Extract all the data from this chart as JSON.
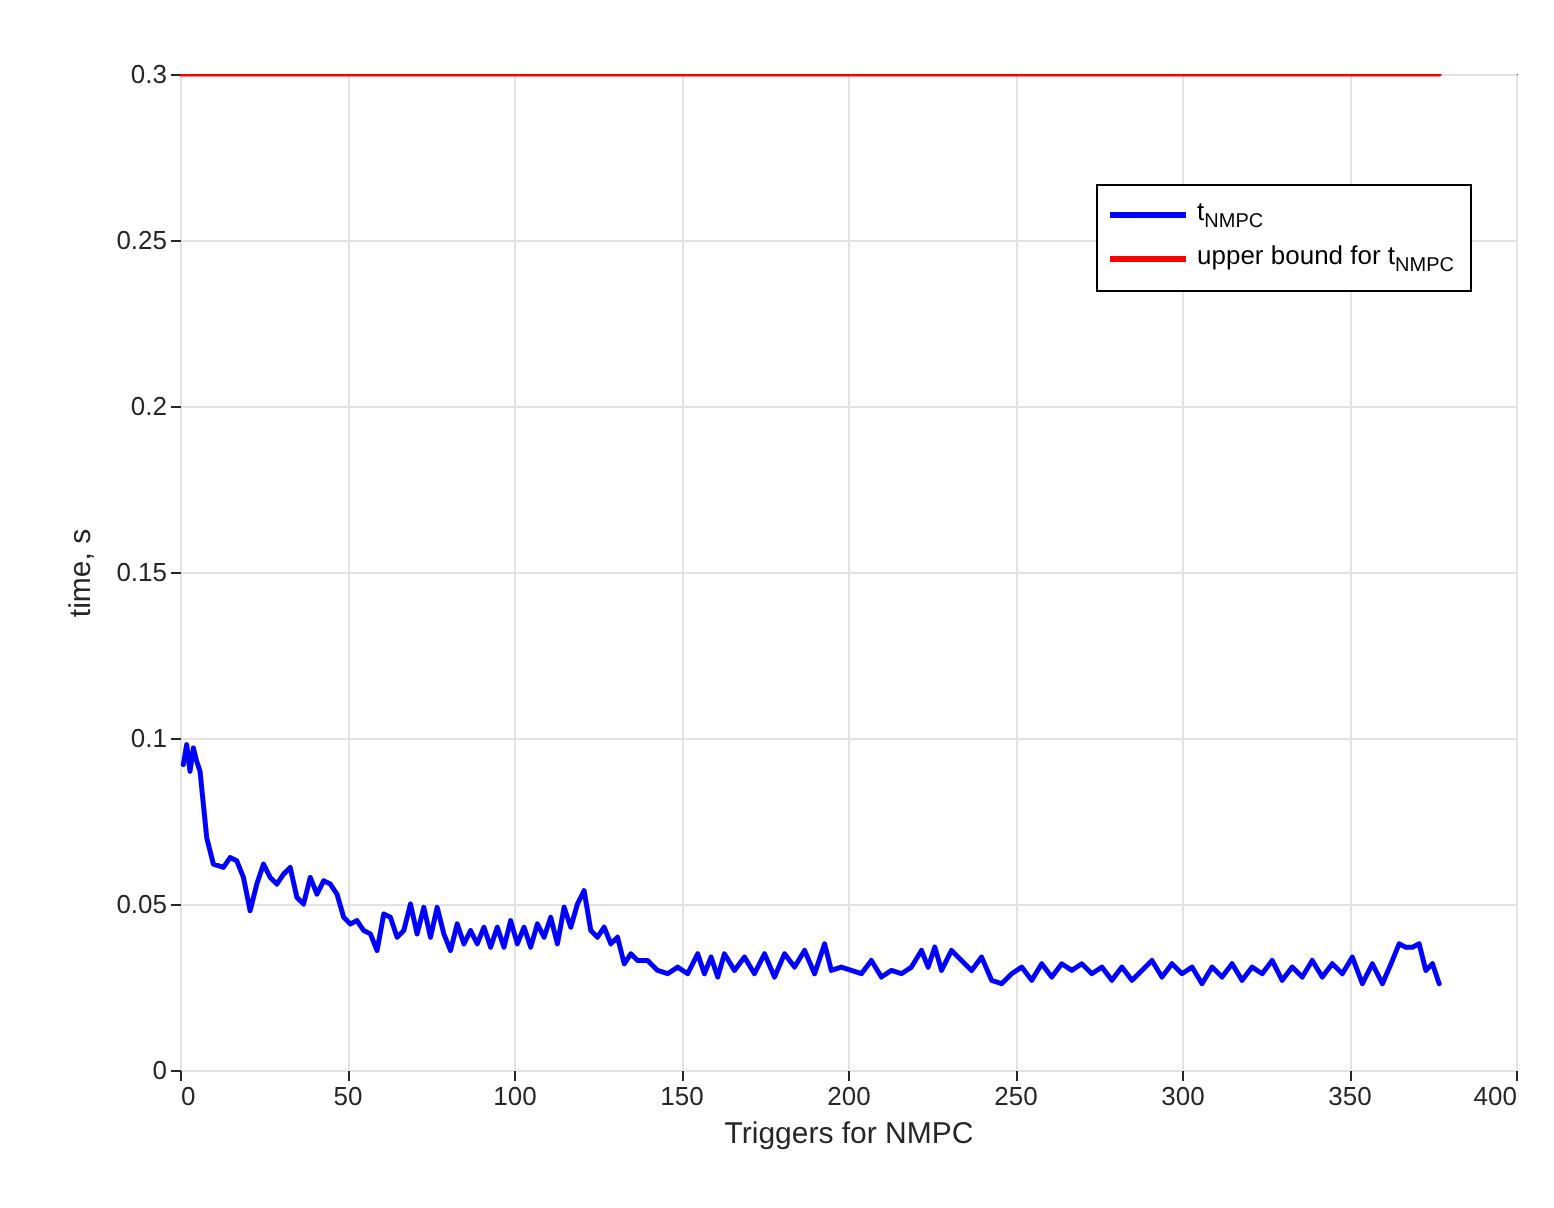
{
  "chart_data": {
    "type": "line",
    "xlabel": "Triggers for NMPC",
    "ylabel": "time, s",
    "xlim": [
      0,
      400
    ],
    "xticks": [
      0,
      50,
      100,
      150,
      200,
      250,
      300,
      350,
      400
    ],
    "ylim": [
      0,
      0.3
    ],
    "yticks": [
      0,
      0.05,
      0.1,
      0.15,
      0.2,
      0.25,
      0.3
    ],
    "grid": true,
    "legend": "top right",
    "series": [
      {
        "name": "t$_{NMPC}$",
        "color": "#0000ff",
        "x": [
          1,
          2,
          3,
          4,
          5,
          6,
          8,
          10,
          13,
          15,
          17,
          19,
          21,
          23,
          25,
          27,
          29,
          31,
          33,
          35,
          37,
          39,
          41,
          43,
          45,
          47,
          49,
          51,
          53,
          55,
          57,
          59,
          61,
          63,
          65,
          67,
          69,
          71,
          73,
          75,
          77,
          79,
          81,
          83,
          85,
          87,
          89,
          91,
          93,
          95,
          97,
          99,
          101,
          103,
          105,
          107,
          109,
          111,
          113,
          115,
          117,
          119,
          121,
          123,
          125,
          127,
          129,
          131,
          133,
          135,
          137,
          140,
          143,
          146,
          149,
          152,
          155,
          157,
          159,
          161,
          163,
          166,
          169,
          172,
          175,
          178,
          181,
          184,
          187,
          190,
          193,
          195,
          198,
          201,
          204,
          207,
          210,
          213,
          216,
          219,
          222,
          224,
          226,
          228,
          231,
          234,
          237,
          240,
          243,
          246,
          249,
          252,
          255,
          258,
          261,
          264,
          267,
          270,
          273,
          276,
          279,
          282,
          285,
          288,
          291,
          294,
          297,
          300,
          303,
          306,
          309,
          312,
          315,
          318,
          321,
          324,
          327,
          330,
          333,
          336,
          339,
          342,
          345,
          348,
          351,
          354,
          357,
          360,
          363,
          365,
          367,
          369,
          371,
          373,
          375,
          377
        ],
        "values": [
          0.092,
          0.098,
          0.09,
          0.097,
          0.093,
          0.09,
          0.07,
          0.062,
          0.061,
          0.064,
          0.063,
          0.058,
          0.048,
          0.056,
          0.062,
          0.058,
          0.056,
          0.059,
          0.061,
          0.052,
          0.05,
          0.058,
          0.053,
          0.057,
          0.056,
          0.053,
          0.046,
          0.044,
          0.045,
          0.042,
          0.041,
          0.036,
          0.047,
          0.046,
          0.04,
          0.042,
          0.05,
          0.041,
          0.049,
          0.04,
          0.049,
          0.041,
          0.036,
          0.044,
          0.038,
          0.042,
          0.038,
          0.043,
          0.037,
          0.043,
          0.037,
          0.045,
          0.038,
          0.043,
          0.037,
          0.044,
          0.04,
          0.046,
          0.038,
          0.049,
          0.043,
          0.05,
          0.054,
          0.042,
          0.04,
          0.043,
          0.038,
          0.04,
          0.032,
          0.035,
          0.033,
          0.033,
          0.03,
          0.029,
          0.031,
          0.029,
          0.035,
          0.029,
          0.034,
          0.028,
          0.035,
          0.03,
          0.034,
          0.029,
          0.035,
          0.028,
          0.035,
          0.031,
          0.036,
          0.029,
          0.038,
          0.03,
          0.031,
          0.03,
          0.029,
          0.033,
          0.028,
          0.03,
          0.029,
          0.031,
          0.036,
          0.031,
          0.037,
          0.03,
          0.036,
          0.033,
          0.03,
          0.034,
          0.027,
          0.026,
          0.029,
          0.031,
          0.027,
          0.032,
          0.028,
          0.032,
          0.03,
          0.032,
          0.029,
          0.031,
          0.027,
          0.031,
          0.027,
          0.03,
          0.033,
          0.028,
          0.032,
          0.029,
          0.031,
          0.026,
          0.031,
          0.028,
          0.032,
          0.027,
          0.031,
          0.029,
          0.033,
          0.027,
          0.031,
          0.028,
          0.033,
          0.028,
          0.032,
          0.029,
          0.034,
          0.026,
          0.032,
          0.026,
          0.033,
          0.038,
          0.037,
          0.037,
          0.038,
          0.03,
          0.032,
          0.026
        ]
      },
      {
        "name": "upper bound for t$_{NMPC}$",
        "color": "#ff0000",
        "x": [
          0,
          377
        ],
        "values": [
          0.3,
          0.3
        ]
      }
    ]
  }
}
